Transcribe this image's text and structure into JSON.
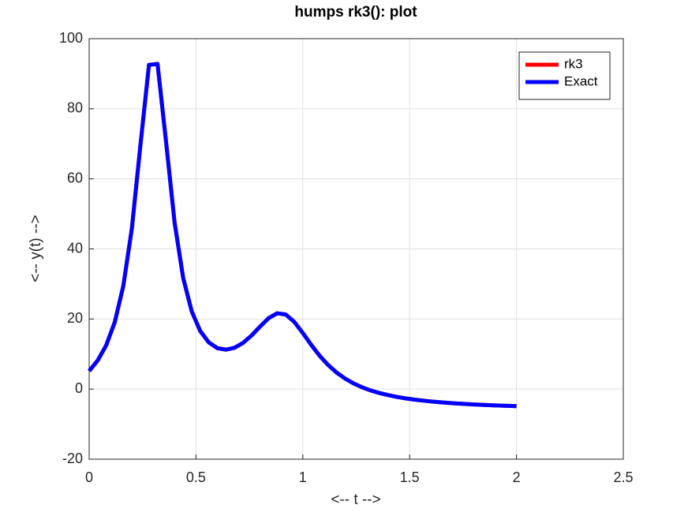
{
  "chart_data": {
    "type": "line",
    "title": "humps rk3(): plot",
    "x_label": "<-- t -->",
    "y_label": "<-- y(t) -->",
    "x": [
      0,
      0.04,
      0.08,
      0.12,
      0.16,
      0.2,
      0.24,
      0.28,
      0.32,
      0.36,
      0.4,
      0.44,
      0.48,
      0.52,
      0.56,
      0.6,
      0.64,
      0.68,
      0.72,
      0.76,
      0.8,
      0.84,
      0.88,
      0.92,
      0.96,
      1,
      1.04,
      1.08,
      1.12,
      1.16,
      1.2,
      1.24,
      1.28,
      1.32,
      1.36,
      1.4,
      1.44,
      1.48,
      1.52,
      1.56,
      1.6,
      1.64,
      1.68,
      1.72,
      1.76,
      1.8,
      1.84,
      1.88,
      1.92,
      1.96,
      2
    ],
    "series": [
      {
        "name": "rk3",
        "color": "#ff0000",
        "values": [
          5.18,
          8.17,
          12.53,
          19.13,
          29.49,
          45.89,
          69.63,
          92.51,
          92.81,
          70.54,
          47.45,
          31.76,
          22.2,
          16.55,
          13.31,
          11.69,
          11.26,
          11.79,
          13.18,
          15.29,
          17.85,
          20.25,
          21.64,
          21.29,
          19.18,
          16,
          12.57,
          9.43,
          6.78,
          4.63,
          2.91,
          1.55,
          0.45,
          -0.43,
          -1.14,
          -1.73,
          -2.22,
          -2.63,
          -2.98,
          -3.27,
          -3.52,
          -3.74,
          -3.94,
          -4.1,
          -4.25,
          -4.38,
          -4.5,
          -4.6,
          -4.69,
          -4.78,
          -4.86
        ]
      },
      {
        "name": "Exact",
        "color": "#0000ff",
        "values": [
          5.18,
          8.17,
          12.53,
          19.13,
          29.49,
          45.89,
          69.63,
          92.51,
          92.81,
          70.54,
          47.45,
          31.76,
          22.2,
          16.55,
          13.31,
          11.69,
          11.26,
          11.79,
          13.18,
          15.29,
          17.85,
          20.25,
          21.64,
          21.29,
          19.18,
          16,
          12.57,
          9.43,
          6.78,
          4.63,
          2.91,
          1.55,
          0.45,
          -0.43,
          -1.14,
          -1.73,
          -2.22,
          -2.63,
          -2.98,
          -3.27,
          -3.52,
          -3.74,
          -3.94,
          -4.1,
          -4.25,
          -4.38,
          -4.5,
          -4.6,
          -4.69,
          -4.78,
          -4.86
        ]
      }
    ],
    "xlim": [
      0,
      2.5
    ],
    "xticks": [
      0,
      0.5,
      1,
      1.5,
      2,
      2.5
    ],
    "ylim": [
      -20,
      100
    ],
    "yticks": [
      -20,
      0,
      20,
      40,
      60,
      80,
      100
    ],
    "grid": true,
    "legend_position": "upper right"
  }
}
